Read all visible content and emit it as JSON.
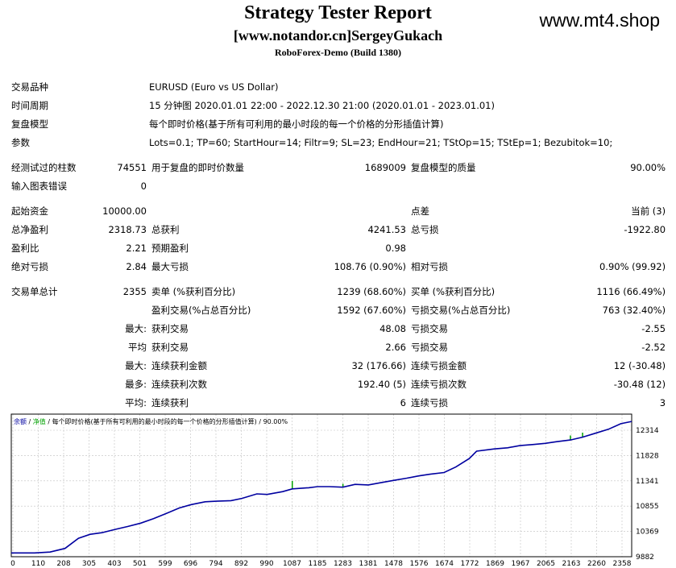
{
  "header": {
    "title": "Strategy Tester Report",
    "subtitle": "[www.notandor.cn]SergeyGukach",
    "build": "RoboForex-Demo (Build 1380)",
    "site": "www.mt4.shop"
  },
  "info": {
    "symbol_label": "交易品种",
    "symbol_value": "EURUSD (Euro vs US Dollar)",
    "period_label": "时间周期",
    "period_value": "15 分钟图 2020.01.01 22:00 - 2022.12.30 21:00 (2020.01.01 - 2023.01.01)",
    "model_label": "复盘模型",
    "model_value": "每个即时价格(基于所有可利用的最小时段的每一个价格的分形插值计算)",
    "params_label": "参数",
    "params_value": "Lots=0.1; TP=60; StartHour=14; Filtr=9; SL=23; EndHour=21; TStOp=15; TStEp=1; Bezubitok=10;"
  },
  "stats": {
    "bars_label": "经测试过的柱数",
    "bars_value": "74551",
    "ticks_label": "用于复盘的即时价数量",
    "ticks_value": "1689009",
    "quality_label": "复盘模型的质量",
    "quality_value": "90.00%",
    "errors_label": "输入图表错误",
    "errors_value": "0",
    "deposit_label": "起始资金",
    "deposit_value": "10000.00",
    "spread_label": "点差",
    "spread_value": "当前 (3)",
    "net_label": "总净盈利",
    "net_value": "2318.73",
    "gross_profit_label": "总获利",
    "gross_profit_value": "4241.53",
    "gross_loss_label": "总亏损",
    "gross_loss_value": "-1922.80",
    "pf_label": "盈利比",
    "pf_value": "2.21",
    "payoff_label": "预期盈利",
    "payoff_value": "0.98",
    "abs_dd_label": "绝对亏损",
    "abs_dd_value": "2.84",
    "max_dd_label": "最大亏损",
    "max_dd_value": "108.76 (0.90%)",
    "rel_dd_label": "相对亏损",
    "rel_dd_value": "0.90% (99.92)",
    "trades_label": "交易单总计",
    "trades_value": "2355",
    "short_label": "卖单 (%获利百分比)",
    "short_value": "1239 (68.60%)",
    "long_label": "买单 (%获利百分比)",
    "long_value": "1116 (66.49%)",
    "profit_trades_label": "盈利交易(%占总百分比)",
    "profit_trades_value": "1592 (67.60%)",
    "loss_trades_label": "亏损交易(%占总百分比)",
    "loss_trades_value": "763 (32.40%)",
    "max_prefix": "最大:",
    "largest_profit_label": "获利交易",
    "largest_profit_value": "48.08",
    "largest_loss_label": "亏损交易",
    "largest_loss_value": "-2.55",
    "avg_prefix": "平均",
    "avg_profit_label": "获利交易",
    "avg_profit_value": "2.66",
    "avg_loss_label": "亏损交易",
    "avg_loss_value": "-2.52",
    "max2_prefix": "最大:",
    "max_consec_wins_label": "连续获利金额",
    "max_consec_wins_value": "32 (176.66)",
    "max_consec_losses_label": "连续亏损金额",
    "max_consec_losses_value": "12 (-30.48)",
    "most_prefix": "最多:",
    "max_consec_profit_label": "连续获利次数",
    "max_consec_profit_value": "192.40 (5)",
    "max_consec_loss_label": "连续亏损次数",
    "max_consec_loss_value": "-30.48 (12)",
    "avg2_prefix": "平均:",
    "avg_consec_wins_label": "连续获利",
    "avg_consec_wins_value": "6",
    "avg_consec_losses_label": "连续亏损",
    "avg_consec_losses_value": "3"
  },
  "chart_data": {
    "type": "line",
    "legend": {
      "balance": "余额",
      "sep1": " / ",
      "equity": "净值",
      "rest": " / 每个即时价格(基于所有可利用的最小时段的每一个价格的分形插值计算) / 90.00%"
    },
    "x_ticks": [
      "0",
      "110",
      "208",
      "305",
      "403",
      "501",
      "599",
      "696",
      "794",
      "892",
      "990",
      "1087",
      "1185",
      "1283",
      "1381",
      "1478",
      "1576",
      "1674",
      "1772",
      "1869",
      "1967",
      "2065",
      "2163",
      "2260",
      "2358"
    ],
    "y_ticks": [
      "12314",
      "11828",
      "11341",
      "10855",
      "10369",
      "9882"
    ],
    "xlim": [
      0,
      2400
    ],
    "ylim": [
      9882,
      12420
    ],
    "series": [
      {
        "color": "#0000a0",
        "x": [
          0,
          90,
          110,
          130,
          150,
          208,
          260,
          305,
          350,
          403,
          450,
          501,
          550,
          599,
          650,
          696,
          750,
          794,
          850,
          892,
          950,
          990,
          1050,
          1087,
          1150,
          1185,
          1230,
          1283,
          1330,
          1381,
          1430,
          1478,
          1530,
          1576,
          1620,
          1674,
          1720,
          1772,
          1800,
          1869,
          1920,
          1967,
          2020,
          2065,
          2110,
          2163,
          2210,
          2260,
          2310,
          2358,
          2400
        ],
        "y": [
          9950,
          9950,
          9955,
          9960,
          9965,
          10030,
          10210,
          10280,
          10310,
          10370,
          10420,
          10480,
          10560,
          10650,
          10750,
          10810,
          10860,
          10870,
          10880,
          10920,
          11000,
          10990,
          11040,
          11090,
          11110,
          11130,
          11130,
          11120,
          11170,
          11160,
          11200,
          11240,
          11280,
          11320,
          11350,
          11380,
          11480,
          11630,
          11760,
          11800,
          11820,
          11860,
          11880,
          11900,
          11930,
          11960,
          12010,
          12080,
          12150,
          12250,
          12290
        ]
      }
    ],
    "equity_spikes": [
      {
        "x": 1087,
        "y0": 11090,
        "y1": 11230
      },
      {
        "x": 1283,
        "y0": 11120,
        "y1": 11180
      },
      {
        "x": 2163,
        "y0": 11960,
        "y1": 12040
      },
      {
        "x": 2210,
        "y0": 12010,
        "y1": 12090
      }
    ],
    "colors": {
      "balance": "#0000a0",
      "equity": "#00a000",
      "grid": "#c0c0c0",
      "frame": "#000000"
    }
  }
}
